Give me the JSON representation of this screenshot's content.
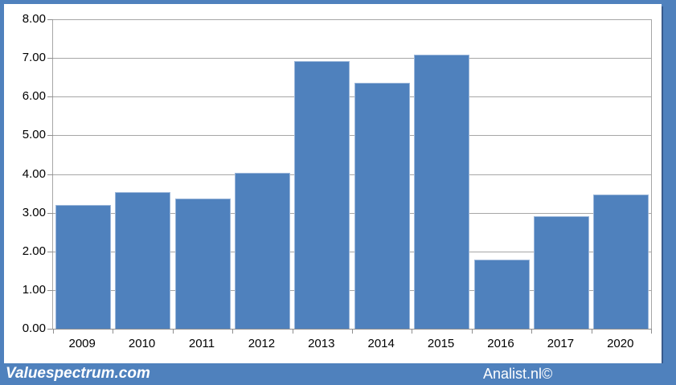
{
  "chart_data": {
    "type": "bar",
    "categories": [
      "2009",
      "2010",
      "2011",
      "2012",
      "2013",
      "2014",
      "2015",
      "2016",
      "2017",
      "2020"
    ],
    "values": [
      3.19,
      3.54,
      3.36,
      4.04,
      6.92,
      6.35,
      7.08,
      1.78,
      2.9,
      3.48
    ],
    "title": "",
    "xlabel": "",
    "ylabel": "",
    "ylim": [
      0,
      8
    ],
    "ytick_step": 1,
    "ytick_labels": [
      "8.00",
      "7.00",
      "6.00",
      "5.00",
      "4.00",
      "3.00",
      "2.00",
      "1.00",
      "0.00"
    ],
    "grid": true,
    "legend": "none",
    "bar_color": "#4f81bd",
    "bar_border_color": "#9cb7da",
    "gridline_color": "#a6a6a6",
    "axis_text_color": "#000000"
  },
  "frame": {
    "background_color": "#4f81bd"
  },
  "footer": {
    "left_text": "Valuespectrum.com",
    "right_text": "Analist.nl©",
    "background_color": "#4f81bd",
    "text_color": "#ffffff"
  }
}
